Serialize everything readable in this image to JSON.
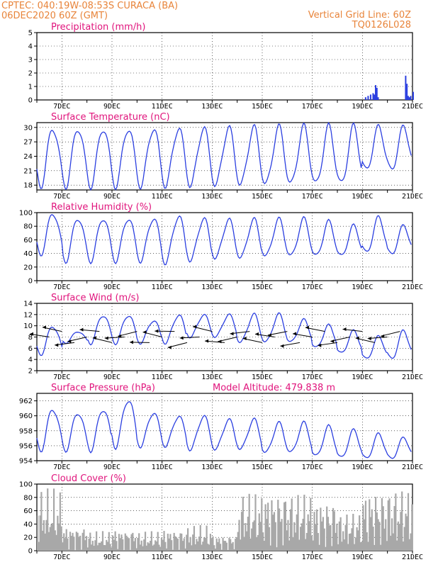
{
  "header": {
    "line1_left": "CPTEC:  040:19W-08:53S  CURACA (BA)",
    "line2_left": "06DEC2020 60Z (GMT)",
    "line1_right": "Vertical Grid Line: 60Z",
    "line2_right": "TQ0126L028"
  },
  "colors": {
    "header": "#e8843a",
    "title": "#e0147c",
    "series": "#2b3fe0",
    "cloud": "#a8a8a8",
    "wind_vector": "#000000"
  },
  "chart_data": [
    {
      "type": "bar",
      "title": "Precipitation (mm/h)",
      "x_ticks": [
        "7DEC",
        "9DEC",
        "11DEC",
        "13DEC",
        "15DEC",
        "17DEC",
        "19DEC",
        "21DEC"
      ],
      "x_range_days": [
        6,
        21
      ],
      "ylim": [
        0,
        5
      ],
      "y_ticks": [
        "0",
        "1",
        "2",
        "3",
        "4",
        "5"
      ],
      "grid": "dotted",
      "series": [
        {
          "values_x_day": [
            19.1,
            19.2,
            19.3,
            19.4,
            19.45,
            19.5,
            19.55,
            19.6,
            20.7,
            20.75,
            20.8,
            20.85,
            20.9,
            21.0
          ],
          "values": [
            0.2,
            0.3,
            0.4,
            0.5,
            0.4,
            1.1,
            0.9,
            0.2,
            1.8,
            1.2,
            0.3,
            0.2,
            0.3,
            0.6
          ]
        }
      ]
    },
    {
      "type": "line",
      "title": "Surface Temperature (nC)",
      "x_ticks": [
        "7DEC",
        "9DEC",
        "11DEC",
        "13DEC",
        "15DEC",
        "17DEC",
        "19DEC",
        "21DEC"
      ],
      "x_range_days": [
        6,
        21
      ],
      "ylim": [
        17,
        31
      ],
      "y_ticks": [
        "18",
        "21",
        "24",
        "27",
        "30"
      ],
      "grid": "dotted",
      "series": [
        {
          "daily_max": [
            30,
            30,
            30,
            30,
            30,
            30,
            30,
            30,
            30,
            30,
            30,
            30,
            30,
            30,
            30
          ],
          "daily_min": [
            18,
            18,
            18,
            18,
            18,
            18,
            18,
            18,
            18,
            18,
            18,
            18,
            18,
            21,
            21
          ]
        }
      ]
    },
    {
      "type": "line",
      "title": "Relative Humidity (%)",
      "x_ticks": [
        "7DEC",
        "9DEC",
        "11DEC",
        "13DEC",
        "15DEC",
        "17DEC",
        "19DEC",
        "21DEC"
      ],
      "x_range_days": [
        6,
        21
      ],
      "ylim": [
        0,
        100
      ],
      "y_ticks": [
        "0",
        "20",
        "40",
        "60",
        "80",
        "100"
      ],
      "grid": "dotted",
      "series": [
        {
          "daily_max": [
            100,
            93,
            93,
            93,
            93,
            96,
            92,
            90,
            90,
            90,
            90,
            86,
            80,
            92,
            80
          ],
          "daily_min": [
            40,
            30,
            30,
            30,
            30,
            27,
            30,
            33,
            33,
            35,
            35,
            35,
            35,
            40,
            38
          ]
        }
      ]
    },
    {
      "type": "line",
      "title": "Surface Wind (m/s)",
      "x_ticks": [
        "7DEC",
        "9DEC",
        "11DEC",
        "13DEC",
        "15DEC",
        "17DEC",
        "19DEC",
        "21DEC"
      ],
      "x_range_days": [
        6,
        21
      ],
      "ylim": [
        2,
        14
      ],
      "y_ticks": [
        "2",
        "4",
        "6",
        "8",
        "10",
        "12",
        "14"
      ],
      "grid": "dotted",
      "series": [
        {
          "daily_max": [
            10,
            9,
            12,
            12,
            11,
            12,
            12,
            12,
            12,
            12,
            11,
            10,
            9,
            8,
            9
          ],
          "daily_min": [
            5,
            7,
            7,
            7,
            7,
            7,
            8,
            8,
            7,
            7,
            7,
            6,
            5,
            4,
            4
          ]
        }
      ],
      "vectors_note": "wind direction arrows"
    },
    {
      "type": "line",
      "title": "Surface Pressure (hPa)",
      "annotation": "Model Altitude: 479.838 m",
      "x_ticks": [
        "7DEC",
        "9DEC",
        "11DEC",
        "13DEC",
        "15DEC",
        "17DEC",
        "19DEC",
        "21DEC"
      ],
      "x_range_days": [
        6,
        21
      ],
      "ylim": [
        954,
        963
      ],
      "y_ticks": [
        "954",
        "956",
        "958",
        "960",
        "962"
      ],
      "grid": "dotted",
      "series": [
        {
          "daily_max": [
            961,
            960.5,
            961,
            962.3,
            960.5,
            960,
            960,
            959.5,
            959.5,
            959,
            959,
            958.5,
            958,
            957.5,
            957
          ],
          "daily_min": [
            955.5,
            955.5,
            955.5,
            956,
            956,
            956,
            955.5,
            955.5,
            955.5,
            955,
            955,
            954.5,
            954.3,
            954.2,
            954.2
          ]
        }
      ]
    },
    {
      "type": "area",
      "title": "Cloud Cover (%)",
      "x_ticks": [
        "7DEC",
        "9DEC",
        "11DEC",
        "13DEC",
        "15DEC",
        "17DEC",
        "19DEC",
        "21DEC"
      ],
      "x_range_days": [
        6,
        21
      ],
      "ylim": [
        0,
        100
      ],
      "y_ticks": [
        "0",
        "20",
        "40",
        "60",
        "80",
        "100"
      ],
      "grid": "dotted",
      "series": [
        {
          "daily_peak": [
            95,
            40,
            30,
            35,
            30,
            35,
            40,
            25,
            90,
            95,
            90,
            80,
            60,
            95,
            98
          ]
        }
      ]
    }
  ]
}
